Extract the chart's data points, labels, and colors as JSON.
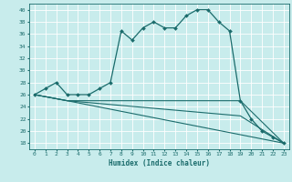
{
  "title": "",
  "xlabel": "Humidex (Indice chaleur)",
  "bg_color": "#c8ecec",
  "grid_color": "#ffffff",
  "line_color": "#1a6b6b",
  "xlim": [
    -0.5,
    23.5
  ],
  "ylim": [
    17,
    41
  ],
  "yticks": [
    18,
    20,
    22,
    24,
    26,
    28,
    30,
    32,
    34,
    36,
    38,
    40
  ],
  "xticks": [
    0,
    1,
    2,
    3,
    4,
    5,
    6,
    7,
    8,
    9,
    10,
    11,
    12,
    13,
    14,
    15,
    16,
    17,
    18,
    19,
    20,
    21,
    22,
    23
  ],
  "main_x": [
    0,
    1,
    2,
    3,
    4,
    5,
    6,
    7,
    8,
    9,
    10,
    11,
    12,
    13,
    14,
    15,
    16,
    17,
    18,
    19,
    20,
    21,
    22,
    23
  ],
  "main_y": [
    26,
    27,
    28,
    26,
    26,
    26,
    27,
    28,
    36.5,
    35,
    37,
    38,
    37,
    37,
    39,
    40,
    40,
    38,
    36.5,
    25,
    22,
    20,
    19,
    18
  ],
  "line2_x": [
    0,
    3,
    19,
    23
  ],
  "line2_y": [
    26,
    25,
    25,
    18
  ],
  "line3_x": [
    0,
    3,
    23
  ],
  "line3_y": [
    26,
    25,
    18
  ],
  "line4_x": [
    0,
    3,
    19,
    23
  ],
  "line4_y": [
    26,
    25,
    22.5,
    18
  ]
}
